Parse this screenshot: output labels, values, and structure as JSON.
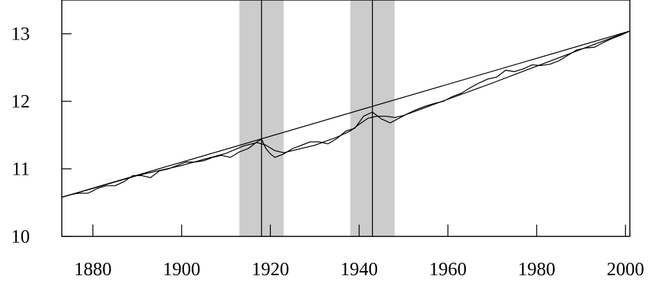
{
  "chart_data": {
    "type": "line",
    "title": "",
    "xlabel": "",
    "ylabel": "",
    "xlim": [
      1873,
      2001
    ],
    "ylim": [
      10,
      13.5
    ],
    "x_ticks": [
      1880,
      1900,
      1920,
      1940,
      1960,
      1980,
      2000
    ],
    "y_ticks": [
      10,
      11,
      12,
      13
    ],
    "x_tick_labels": [
      "1880",
      "1900",
      "1920",
      "1940",
      "1960",
      "1980",
      "2000"
    ],
    "y_tick_labels": [
      "10",
      "11",
      "12",
      "13"
    ],
    "grid": false,
    "legend": "none",
    "shaded_bands": [
      {
        "x_start": 1913,
        "x_end": 1923
      },
      {
        "x_start": 1938,
        "x_end": 1948
      }
    ],
    "vertical_lines": [
      1918,
      1943
    ],
    "series": [
      {
        "role": "actual",
        "x": [
          1873,
          1875,
          1877,
          1879,
          1881,
          1883,
          1885,
          1887,
          1889,
          1891,
          1893,
          1895,
          1897,
          1899,
          1901,
          1903,
          1905,
          1907,
          1909,
          1911,
          1913,
          1915,
          1917,
          1918,
          1919,
          1920,
          1921,
          1923,
          1925,
          1927,
          1929,
          1931,
          1933,
          1935,
          1937,
          1939,
          1941,
          1943,
          1945,
          1947,
          1949,
          1951,
          1953,
          1955,
          1957,
          1959,
          1961,
          1963,
          1965,
          1967,
          1969,
          1971,
          1973,
          1975,
          1977,
          1979,
          1981,
          1983,
          1985,
          1987,
          1989,
          1991,
          1993,
          1995,
          1997,
          1999,
          2001
        ],
        "y": [
          10.58,
          10.62,
          10.64,
          10.64,
          10.71,
          10.75,
          10.75,
          10.81,
          10.9,
          10.9,
          10.87,
          10.97,
          11.0,
          11.05,
          11.1,
          11.1,
          11.12,
          11.17,
          11.2,
          11.17,
          11.25,
          11.3,
          11.4,
          11.44,
          11.3,
          11.22,
          11.17,
          11.22,
          11.3,
          11.35,
          11.4,
          11.4,
          11.37,
          11.45,
          11.56,
          11.6,
          11.78,
          11.84,
          11.74,
          11.68,
          11.75,
          11.82,
          11.88,
          11.93,
          11.97,
          12.0,
          12.07,
          12.12,
          12.2,
          12.27,
          12.33,
          12.36,
          12.46,
          12.44,
          12.48,
          12.54,
          12.53,
          12.55,
          12.6,
          12.68,
          12.76,
          12.79,
          12.8,
          12.87,
          12.93,
          12.98,
          13.04
        ]
      },
      {
        "role": "linear-trend",
        "x": [
          1873,
          2001
        ],
        "y": [
          10.58,
          13.04
        ]
      },
      {
        "role": "smoothed",
        "x": [
          1873,
          1880,
          1890,
          1900,
          1905,
          1910,
          1914,
          1917,
          1919,
          1921,
          1923,
          1925,
          1930,
          1935,
          1938,
          1940,
          1942,
          1944,
          1946,
          1948,
          1950,
          1955,
          1960,
          1970,
          1980,
          1990,
          2001
        ],
        "y": [
          10.58,
          10.71,
          10.9,
          11.05,
          11.14,
          11.23,
          11.34,
          11.39,
          11.35,
          11.27,
          11.24,
          11.27,
          11.35,
          11.47,
          11.56,
          11.66,
          11.75,
          11.78,
          11.78,
          11.76,
          11.79,
          11.91,
          12.03,
          12.27,
          12.52,
          12.77,
          13.04
        ]
      }
    ]
  }
}
